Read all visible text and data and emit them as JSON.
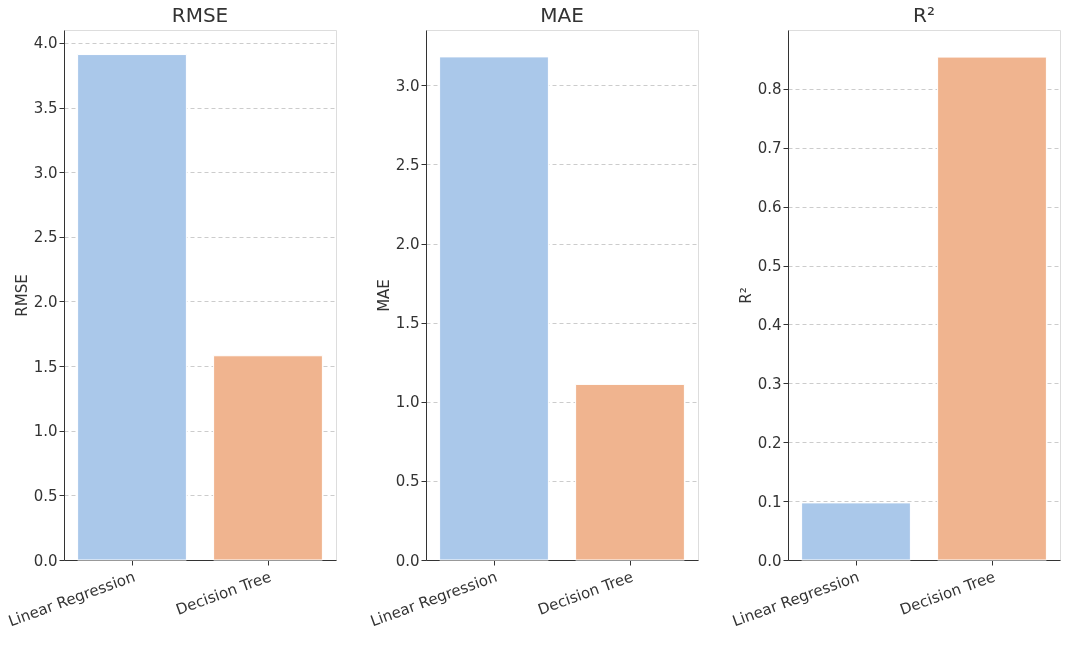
{
  "chart_data": [
    {
      "type": "bar",
      "title": "RMSE",
      "ylabel": "RMSE",
      "categories": [
        "Linear Regression",
        "Decision Tree"
      ],
      "values": [
        3.91,
        1.58
      ],
      "colors": [
        "#aac8ea",
        "#f0b48f"
      ],
      "ylim": [
        0,
        4.1
      ],
      "yticks": [
        {
          "value": 0,
          "label": "0.0"
        },
        0.5,
        {
          "value": 1,
          "label": "1.0"
        },
        1.5,
        {
          "value": 2,
          "label": "2.0"
        },
        2.5,
        {
          "value": 3,
          "label": "3.0"
        },
        3.5,
        {
          "value": 4,
          "label": "4.0"
        }
      ],
      "grid": "y"
    },
    {
      "type": "bar",
      "title": "MAE",
      "ylabel": "MAE",
      "categories": [
        "Linear Regression",
        "Decision Tree"
      ],
      "values": [
        3.18,
        1.11
      ],
      "colors": [
        "#aac8ea",
        "#f0b48f"
      ],
      "ylim": [
        0,
        3.35
      ],
      "yticks": [
        {
          "value": 0,
          "label": "0.0"
        },
        0.5,
        {
          "value": 1,
          "label": "1.0"
        },
        1.5,
        {
          "value": 2,
          "label": "2.0"
        },
        2.5,
        {
          "value": 3,
          "label": "3.0"
        }
      ],
      "grid": "y"
    },
    {
      "type": "bar",
      "title": "R²",
      "ylabel": "R²",
      "categories": [
        "Linear Regression",
        "Decision Tree"
      ],
      "values": [
        0.097,
        0.854
      ],
      "colors": [
        "#aac8ea",
        "#f0b48f"
      ],
      "ylim": [
        0,
        0.9
      ],
      "yticks": [
        {
          "value": 0,
          "label": "0.0"
        },
        0.1,
        0.2,
        0.3,
        0.4,
        0.5,
        0.6,
        0.7,
        0.8
      ],
      "grid": "y"
    }
  ]
}
